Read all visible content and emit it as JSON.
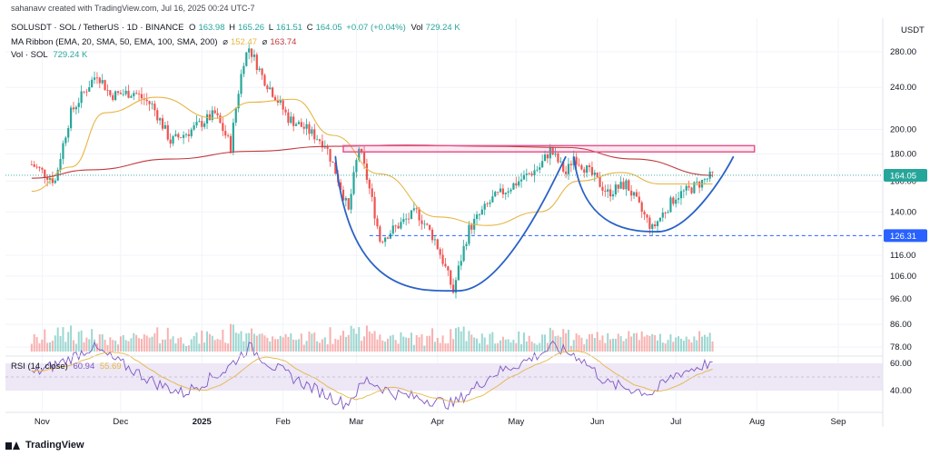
{
  "header": {
    "created_by": "sahanavv created with TradingView.com, Jul 16, 2025 00:24 UTC-7"
  },
  "legend": {
    "symbol": "SOLUSDT · SOL / TetherUS · 1D · BINANCE",
    "o_label": "O",
    "o": "163.98",
    "h_label": "H",
    "h": "165.26",
    "l_label": "L",
    "l": "161.51",
    "c_label": "C",
    "c": "164.05",
    "change": "+0.07 (+0.04%)",
    "vol_label": "Vol",
    "vol": "729.24 K",
    "ma_label": "MA Ribbon (EMA, 20, SMA, 50, EMA, 100, SMA, 200)",
    "ma_sym": "⌀",
    "ma1": "152.47",
    "ma2": "163.74",
    "volume_label": "Vol · SOL",
    "volume": "729.24 K",
    "rsi_label": "RSI (14, close)",
    "rsi1": "60.94",
    "rsi2": "55.69"
  },
  "footer": {
    "brand": "TradingView"
  },
  "colors": {
    "up": "#26a69a",
    "down": "#ef5350",
    "ma_fast": "#e6b545",
    "ma_slow": "#c0393d",
    "resistance": "#e3568e",
    "support": "#2962ff",
    "cup": "#2b62c6",
    "rsi": "#7e57c2",
    "rsi_ma": "#e6b545",
    "price_tag": "#26a69a",
    "support_tag": "#2962ff"
  },
  "chart_data": {
    "type": "candlestick",
    "scale": "log",
    "currency": "USDT",
    "price_ticks": [
      "280.00",
      "240.00",
      "200.00",
      "180.00",
      "160.00",
      "140.00",
      "126.31",
      "116.00",
      "106.00",
      "96.00",
      "86.00",
      "78.00"
    ],
    "rsi_ticks": [
      "60.00",
      "40.00"
    ],
    "x_labels": [
      "Nov",
      "Dec",
      "2025",
      "Feb",
      "Mar",
      "Apr",
      "May",
      "Jun",
      "Jul",
      "Aug",
      "Sep"
    ],
    "current_price": "164.05",
    "support_label": "126.31",
    "support_level": 126.31,
    "resistance_zone": [
      181.5,
      186.5
    ],
    "cup_bottom": 99.5,
    "handle_bottom": 128.5,
    "price_path": [
      [
        "2024-10-28",
        172
      ],
      [
        "2024-11-06",
        160
      ],
      [
        "2024-11-12",
        215
      ],
      [
        "2024-11-22",
        255
      ],
      [
        "2024-11-27",
        232
      ],
      [
        "2024-12-06",
        235
      ],
      [
        "2024-12-13",
        222
      ],
      [
        "2024-12-20",
        190
      ],
      [
        "2024-12-27",
        198
      ],
      [
        "2025-01-06",
        214
      ],
      [
        "2025-01-12",
        186
      ],
      [
        "2025-01-17",
        270
      ],
      [
        "2025-01-19",
        285
      ],
      [
        "2025-01-24",
        252
      ],
      [
        "2025-02-03",
        210
      ],
      [
        "2025-02-10",
        200
      ],
      [
        "2025-02-17",
        188
      ],
      [
        "2025-02-26",
        140
      ],
      [
        "2025-03-02",
        185
      ],
      [
        "2025-03-10",
        124
      ],
      [
        "2025-03-24",
        140
      ],
      [
        "2025-03-31",
        124
      ],
      [
        "2025-04-07",
        99
      ],
      [
        "2025-04-13",
        130
      ],
      [
        "2025-04-22",
        148
      ],
      [
        "2025-04-28",
        155
      ],
      [
        "2025-05-10",
        170
      ],
      [
        "2025-05-14",
        183
      ],
      [
        "2025-05-20",
        165
      ],
      [
        "2025-05-23",
        178
      ],
      [
        "2025-06-05",
        152
      ],
      [
        "2025-06-12",
        158
      ],
      [
        "2025-06-18",
        140
      ],
      [
        "2025-06-22",
        130
      ],
      [
        "2025-07-01",
        150
      ],
      [
        "2025-07-06",
        154
      ],
      [
        "2025-07-15",
        164
      ]
    ],
    "ma_fast_path": [
      [
        "2024-10-28",
        153
      ],
      [
        "2024-11-12",
        170
      ],
      [
        "2024-11-25",
        215
      ],
      [
        "2024-12-15",
        230
      ],
      [
        "2025-01-06",
        210
      ],
      [
        "2025-01-20",
        225
      ],
      [
        "2025-02-05",
        228
      ],
      [
        "2025-02-20",
        195
      ],
      [
        "2025-03-10",
        165
      ],
      [
        "2025-04-01",
        137
      ],
      [
        "2025-04-20",
        132
      ],
      [
        "2025-05-10",
        140
      ],
      [
        "2025-05-25",
        160
      ],
      [
        "2025-06-10",
        166
      ],
      [
        "2025-06-25",
        158
      ],
      [
        "2025-07-15",
        158
      ]
    ],
    "ma_slow_path": [
      [
        "2024-10-28",
        162
      ],
      [
        "2024-11-20",
        168
      ],
      [
        "2024-12-20",
        176
      ],
      [
        "2025-01-20",
        182
      ],
      [
        "2025-02-20",
        186
      ],
      [
        "2025-03-20",
        187
      ],
      [
        "2025-04-20",
        186
      ],
      [
        "2025-05-20",
        185
      ],
      [
        "2025-06-15",
        176
      ],
      [
        "2025-07-15",
        164
      ]
    ],
    "rsi_path": [
      [
        "2024-10-28",
        52
      ],
      [
        "2024-11-10",
        62
      ],
      [
        "2024-11-20",
        72
      ],
      [
        "2024-12-01",
        60
      ],
      [
        "2024-12-15",
        45
      ],
      [
        "2024-12-25",
        38
      ],
      [
        "2025-01-10",
        55
      ],
      [
        "2025-01-19",
        72
      ],
      [
        "2025-01-28",
        58
      ],
      [
        "2025-02-10",
        44
      ],
      [
        "2025-02-25",
        30
      ],
      [
        "2025-03-05",
        48
      ],
      [
        "2025-03-15",
        38
      ],
      [
        "2025-04-07",
        30
      ],
      [
        "2025-04-22",
        52
      ],
      [
        "2025-05-05",
        62
      ],
      [
        "2025-05-15",
        72
      ],
      [
        "2025-05-25",
        65
      ],
      [
        "2025-06-05",
        45
      ],
      [
        "2025-06-22",
        38
      ],
      [
        "2025-07-01",
        52
      ],
      [
        "2025-07-15",
        60.94
      ]
    ]
  }
}
